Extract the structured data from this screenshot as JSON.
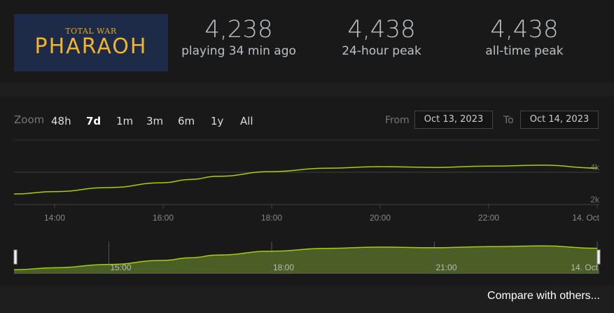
{
  "game": {
    "logo_small": "TOTAL WAR",
    "logo_big": "PHARAOH"
  },
  "stats": [
    {
      "value": "4,238",
      "label": "playing 34 min ago"
    },
    {
      "value": "4,438",
      "label": "24-hour peak"
    },
    {
      "value": "4,438",
      "label": "all-time peak"
    }
  ],
  "zoom": {
    "label": "Zoom",
    "options": [
      "48h",
      "7d",
      "1m",
      "3m",
      "6m",
      "1y",
      "All"
    ],
    "selected": "7d"
  },
  "range": {
    "from_label": "From",
    "from": "Oct 13, 2023",
    "to_label": "To",
    "to": "Oct 14, 2023"
  },
  "compare": "Compare with others...",
  "chart_data": {
    "type": "line",
    "line_color": "#a4d007",
    "x_hours": [
      13.25,
      14,
      15,
      16,
      16.5,
      17,
      18,
      19,
      20,
      21,
      22,
      23,
      24
    ],
    "values": [
      2650,
      2800,
      3050,
      3350,
      3550,
      3750,
      4040,
      4250,
      4350,
      4300,
      4380,
      4440,
      4260
    ],
    "ylim": [
      2000,
      6000
    ],
    "y_ticks": [
      {
        "v": 2000,
        "label": "2k"
      },
      {
        "v": 4000,
        "label": "4k"
      }
    ],
    "x_ticks": [
      {
        "h": 14,
        "label": "14:00"
      },
      {
        "h": 16,
        "label": "16:00"
      },
      {
        "h": 18,
        "label": "18:00"
      },
      {
        "h": 20,
        "label": "20:00"
      },
      {
        "h": 22,
        "label": "22:00"
      },
      {
        "h": 24,
        "label": "14. Oct"
      }
    ],
    "navigator_ticks": [
      {
        "h": 15,
        "label": "15:00"
      },
      {
        "h": 18,
        "label": "18:00"
      },
      {
        "h": 21,
        "label": "21:00"
      },
      {
        "h": 24,
        "label": "14. Oct"
      }
    ]
  }
}
